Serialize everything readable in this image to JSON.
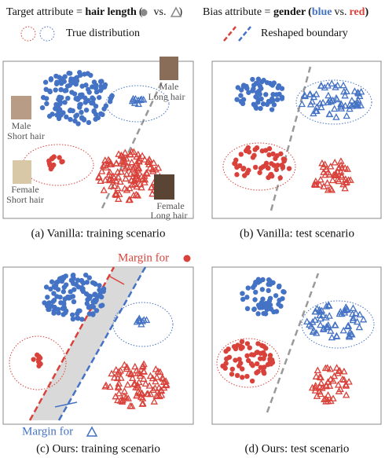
{
  "legend": {
    "target_prefix": "Target attribute = ",
    "target_bold": "hair length",
    "open": "(",
    "vs": "vs.",
    "close": ")",
    "bias_prefix": "Bias attribute = ",
    "bias_bold": "gender",
    "blue": "blue",
    "red": "red",
    "true_distribution": "True distribution",
    "reshaped_boundary": "Reshaped boundary"
  },
  "panels": [
    {
      "caption": "(a) Vanilla: training scenario",
      "faces": [
        "Male",
        "Short hair",
        "Male",
        "Long hair",
        "Female",
        "Short hair",
        "Female",
        "Long hair"
      ]
    },
    {
      "caption": "(b) Vanilla: test scenario"
    },
    {
      "caption": "(c) Ours: training scenario",
      "margin_top": "Margin for",
      "margin_bottom": "Margin for"
    },
    {
      "caption": "(d) Ours: test scenario"
    }
  ]
}
